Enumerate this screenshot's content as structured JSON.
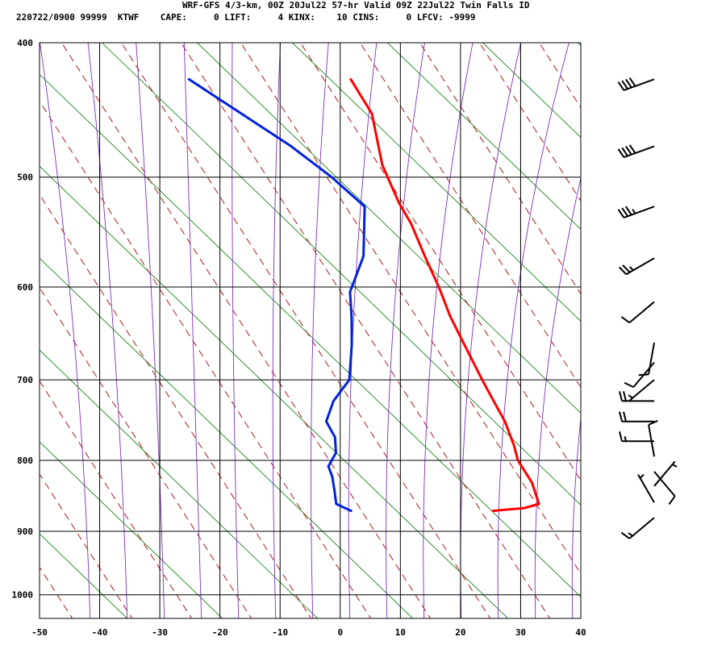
{
  "header": {
    "line1": "WRF-GFS 4/3-km, 00Z 20Jul22 57-hr Valid 09Z 22Jul22 Twin Falls ID",
    "line2": "220722/0900 99999  KTWF    CAPE:     0 LIFT:     4 KINX:    10 CINS:     0 LFCV: -9999"
  },
  "chart_data": {
    "type": "line",
    "title": "WRF-GFS 4/3-km, 00Z 20Jul22 57-hr Valid 09Z 22Jul22 Twin Falls ID",
    "station": "KTWF",
    "diagram": "skew-T log-P",
    "x_axis": {
      "label": "",
      "unit": "C",
      "range": [
        -50,
        40
      ],
      "ticks": [
        -50,
        -40,
        -30,
        -20,
        -10,
        0,
        10,
        20,
        30,
        40
      ]
    },
    "y_axis": {
      "label": "",
      "unit": "hPa",
      "scale": "log",
      "range": [
        1040,
        400
      ],
      "ticks": [
        400,
        500,
        600,
        700,
        800,
        900,
        1000
      ]
    },
    "grid": true,
    "colors": {
      "temperature": "#ff0000",
      "dewpoint": "#0022dd",
      "dry_adiabats": "#aa0000",
      "moist_adiabats": "#7f2fbf",
      "mixing_ratio": "#007700",
      "grid": "#000000"
    },
    "series": [
      {
        "id": "temperature",
        "color": "#ff0000",
        "points": [
          {
            "p": 870,
            "t": 21.7
          },
          {
            "p": 866,
            "t": 26.8
          },
          {
            "p": 860,
            "t": 29.1
          },
          {
            "p": 830,
            "t": 27.2
          },
          {
            "p": 800,
            "t": 24.1
          },
          {
            "p": 780,
            "t": 22.9
          },
          {
            "p": 750,
            "t": 20.6
          },
          {
            "p": 720,
            "t": 17.5
          },
          {
            "p": 700,
            "t": 15.4
          },
          {
            "p": 660,
            "t": 11.2
          },
          {
            "p": 630,
            "t": 7.9
          },
          {
            "p": 600,
            "t": 5.0
          },
          {
            "p": 570,
            "t": 1.6
          },
          {
            "p": 540,
            "t": -1.8
          },
          {
            "p": 522,
            "t": -4.5
          },
          {
            "p": 490,
            "t": -8.6
          },
          {
            "p": 450,
            "t": -12.1
          },
          {
            "p": 425,
            "t": -16.8
          }
        ]
      },
      {
        "id": "dewpoint",
        "color": "#0022dd",
        "points": [
          {
            "p": 870,
            "t": -1.9
          },
          {
            "p": 860,
            "t": -4.6
          },
          {
            "p": 840,
            "t": -5.4
          },
          {
            "p": 822,
            "t": -6.2
          },
          {
            "p": 808,
            "t": -7.2
          },
          {
            "p": 790,
            "t": -6.4
          },
          {
            "p": 770,
            "t": -7.1
          },
          {
            "p": 750,
            "t": -9.1
          },
          {
            "p": 725,
            "t": -8.6
          },
          {
            "p": 700,
            "t": -6.7
          },
          {
            "p": 660,
            "t": -7.5
          },
          {
            "p": 630,
            "t": -8.5
          },
          {
            "p": 605,
            "t": -9.6
          },
          {
            "p": 570,
            "t": -8.6
          },
          {
            "p": 525,
            "t": -10.1
          },
          {
            "p": 500,
            "t": -16.6
          },
          {
            "p": 475,
            "t": -24.4
          },
          {
            "p": 425,
            "t": -43.7
          }
        ]
      }
    ],
    "wind_barbs": [
      {
        "p": 425,
        "dir": 250,
        "kt": 40
      },
      {
        "p": 475,
        "dir": 250,
        "kt": 40
      },
      {
        "p": 525,
        "dir": 250,
        "kt": 35
      },
      {
        "p": 572,
        "dir": 240,
        "kt": 25
      },
      {
        "p": 615,
        "dir": 230,
        "kt": 10
      },
      {
        "p": 658,
        "dir": 190,
        "kt": 10
      },
      {
        "p": 680,
        "dir": 220,
        "kt": 10
      },
      {
        "p": 700,
        "dir": 230,
        "kt": 5
      },
      {
        "p": 725,
        "dir": 270,
        "kt": 20
      },
      {
        "p": 750,
        "dir": 270,
        "kt": 20
      },
      {
        "p": 775,
        "dir": 270,
        "kt": 15
      },
      {
        "p": 795,
        "dir": 350,
        "kt": 10
      },
      {
        "p": 815,
        "dir": 140,
        "kt": 10
      },
      {
        "p": 835,
        "dir": 40,
        "kt": 5
      },
      {
        "p": 858,
        "dir": 330,
        "kt": 5
      },
      {
        "p": 880,
        "dir": 230,
        "kt": 15
      }
    ]
  }
}
